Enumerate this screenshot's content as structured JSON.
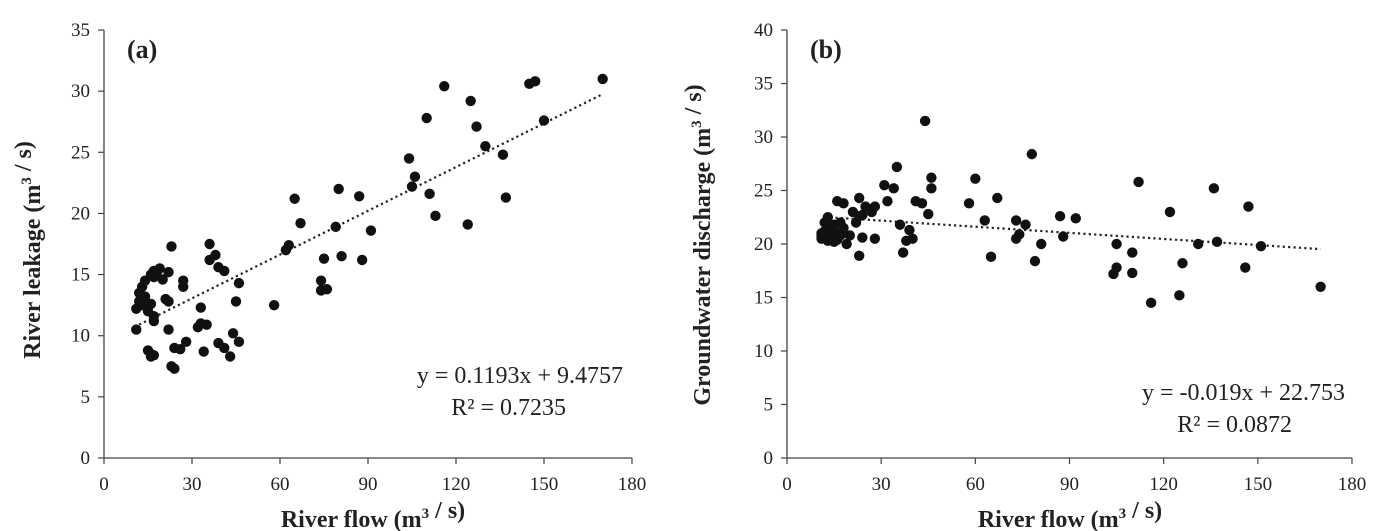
{
  "chart_data": [
    {
      "type": "scatter",
      "panel_label": "(a)",
      "xlabel": "River flow (m³ / s)",
      "ylabel": "River leakage  (m³ / s)",
      "xlim": [
        0,
        180
      ],
      "ylim": [
        0,
        35
      ],
      "xticks": [
        "0",
        "30",
        "60",
        "90",
        "120",
        "150",
        "180"
      ],
      "yticks": [
        "0",
        "5",
        "10",
        "15",
        "20",
        "25",
        "30",
        "35"
      ],
      "grid": false,
      "trendline": {
        "style": "dotted",
        "slope": 0.1193,
        "intercept": 9.4757,
        "x_range": [
          12,
          170
        ]
      },
      "equation": "y = 0.1193x + 9.4757",
      "r2": "R² = 0.7235",
      "points": [
        [
          11,
          10.5
        ],
        [
          11,
          12.2
        ],
        [
          12,
          12.8
        ],
        [
          12,
          13.5
        ],
        [
          13,
          14.0
        ],
        [
          13,
          12.5
        ],
        [
          14,
          14.5
        ],
        [
          14,
          13.2
        ],
        [
          15,
          12.0
        ],
        [
          15,
          8.8
        ],
        [
          16,
          15.0
        ],
        [
          16,
          12.6
        ],
        [
          16,
          8.5
        ],
        [
          16,
          8.3
        ],
        [
          17,
          15.3
        ],
        [
          17,
          14.8
        ],
        [
          17,
          11.6
        ],
        [
          17,
          11.2
        ],
        [
          17,
          8.4
        ],
        [
          18,
          15.2
        ],
        [
          19,
          15.5
        ],
        [
          20,
          14.6
        ],
        [
          21,
          13.0
        ],
        [
          22,
          12.8
        ],
        [
          22,
          15.2
        ],
        [
          22,
          10.5
        ],
        [
          23,
          17.3
        ],
        [
          23,
          7.5
        ],
        [
          24,
          7.3
        ],
        [
          24,
          9.0
        ],
        [
          26,
          8.9
        ],
        [
          27,
          14.0
        ],
        [
          27,
          14.5
        ],
        [
          28,
          9.5
        ],
        [
          32,
          10.7
        ],
        [
          33,
          11.0
        ],
        [
          33,
          12.3
        ],
        [
          34,
          8.7
        ],
        [
          35,
          10.9
        ],
        [
          36,
          16.2
        ],
        [
          36,
          17.5
        ],
        [
          38,
          16.6
        ],
        [
          39,
          15.6
        ],
        [
          39,
          9.4
        ],
        [
          41,
          15.3
        ],
        [
          41,
          9.0
        ],
        [
          43,
          8.3
        ],
        [
          44,
          10.2
        ],
        [
          45,
          12.8
        ],
        [
          46,
          9.5
        ],
        [
          46,
          14.3
        ],
        [
          58,
          12.5
        ],
        [
          62,
          17.0
        ],
        [
          63,
          17.4
        ],
        [
          65,
          21.2
        ],
        [
          67,
          19.2
        ],
        [
          74,
          14.5
        ],
        [
          74,
          13.7
        ],
        [
          75,
          16.3
        ],
        [
          76,
          13.8
        ],
        [
          79,
          18.9
        ],
        [
          80,
          22.0
        ],
        [
          81,
          16.5
        ],
        [
          87,
          21.4
        ],
        [
          88,
          16.2
        ],
        [
          91,
          18.6
        ],
        [
          104,
          24.5
        ],
        [
          105,
          22.2
        ],
        [
          106,
          23.0
        ],
        [
          110,
          27.8
        ],
        [
          111,
          21.6
        ],
        [
          113,
          19.8
        ],
        [
          116,
          30.4
        ],
        [
          124,
          19.1
        ],
        [
          125,
          29.2
        ],
        [
          127,
          27.1
        ],
        [
          130,
          25.5
        ],
        [
          136,
          24.8
        ],
        [
          137,
          21.3
        ],
        [
          145,
          30.6
        ],
        [
          147,
          30.8
        ],
        [
          150,
          27.6
        ],
        [
          170,
          31.0
        ]
      ]
    },
    {
      "type": "scatter",
      "panel_label": "(b)",
      "xlabel": "River flow (m³ / s)",
      "ylabel": "Groundwater discharge (m³ / s)",
      "xlim": [
        0,
        180
      ],
      "ylim": [
        0,
        40
      ],
      "xticks": [
        "0",
        "30",
        "60",
        "90",
        "120",
        "150",
        "180"
      ],
      "yticks": [
        "0",
        "5",
        "10",
        "15",
        "20",
        "25",
        "30",
        "35",
        "40"
      ],
      "grid": false,
      "trendline": {
        "style": "dotted",
        "slope": -0.019,
        "intercept": 22.753,
        "x_range": [
          12,
          170
        ]
      },
      "equation": "y = -0.019x + 22.753",
      "r2": "R² = 0.0872",
      "points": [
        [
          11,
          20.5
        ],
        [
          11,
          21.0
        ],
        [
          11,
          20.8
        ],
        [
          12,
          21.2
        ],
        [
          12,
          22.0
        ],
        [
          13,
          22.5
        ],
        [
          13,
          20.3
        ],
        [
          14,
          21.5
        ],
        [
          14,
          20.7
        ],
        [
          15,
          21.8
        ],
        [
          15,
          20.2
        ],
        [
          15,
          20.9
        ],
        [
          16,
          24.0
        ],
        [
          16,
          21.0
        ],
        [
          16,
          20.4
        ],
        [
          17,
          22.0
        ],
        [
          17,
          20.8
        ],
        [
          18,
          23.8
        ],
        [
          18,
          21.5
        ],
        [
          19,
          20.0
        ],
        [
          20,
          20.8
        ],
        [
          21,
          23.0
        ],
        [
          22,
          22.0
        ],
        [
          23,
          24.3
        ],
        [
          23,
          22.6
        ],
        [
          23,
          18.9
        ],
        [
          24,
          22.7
        ],
        [
          24,
          20.6
        ],
        [
          25,
          23.5
        ],
        [
          27,
          23.0
        ],
        [
          28,
          23.5
        ],
        [
          28,
          20.5
        ],
        [
          31,
          25.5
        ],
        [
          32,
          24.0
        ],
        [
          34,
          25.2
        ],
        [
          35,
          27.2
        ],
        [
          36,
          21.8
        ],
        [
          37,
          19.2
        ],
        [
          38,
          20.3
        ],
        [
          39,
          21.3
        ],
        [
          40,
          20.5
        ],
        [
          41,
          24.0
        ],
        [
          43,
          23.8
        ],
        [
          44,
          31.5
        ],
        [
          45,
          22.8
        ],
        [
          46,
          26.2
        ],
        [
          46,
          25.2
        ],
        [
          58,
          23.8
        ],
        [
          60,
          26.1
        ],
        [
          63,
          22.2
        ],
        [
          65,
          18.8
        ],
        [
          67,
          24.3
        ],
        [
          73,
          22.2
        ],
        [
          73,
          20.5
        ],
        [
          74,
          20.9
        ],
        [
          76,
          21.8
        ],
        [
          78,
          28.4
        ],
        [
          79,
          18.4
        ],
        [
          81,
          20.0
        ],
        [
          87,
          22.6
        ],
        [
          88,
          20.7
        ],
        [
          92,
          22.4
        ],
        [
          104,
          17.2
        ],
        [
          105,
          17.8
        ],
        [
          105,
          20.0
        ],
        [
          110,
          17.3
        ],
        [
          110,
          19.2
        ],
        [
          112,
          25.8
        ],
        [
          116,
          14.5
        ],
        [
          122,
          23.0
        ],
        [
          125,
          15.2
        ],
        [
          126,
          18.2
        ],
        [
          131,
          20.0
        ],
        [
          136,
          25.2
        ],
        [
          137,
          20.2
        ],
        [
          146,
          17.8
        ],
        [
          147,
          23.5
        ],
        [
          151,
          19.8
        ],
        [
          170,
          16.0
        ]
      ]
    }
  ]
}
